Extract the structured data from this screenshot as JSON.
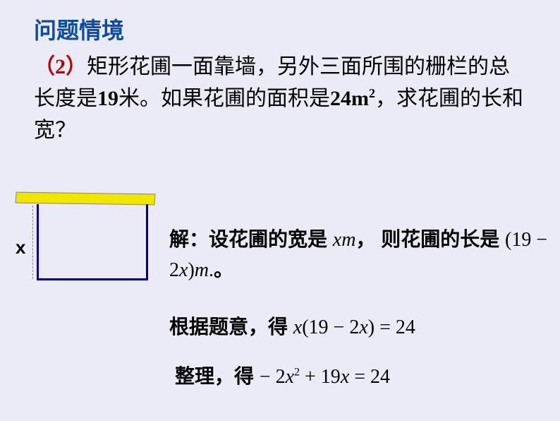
{
  "title": "问题情境",
  "problem": {
    "num": "（2）",
    "t1": "矩形花圃一面靠墙，另外三面所围的栅栏的总长度是",
    "len": "19",
    "t2": "米。如果花圃的面积是",
    "area": "24m",
    "areaExp": "2",
    "t3": "，求花圃的长和宽？"
  },
  "diagram": {
    "xLabel": "x",
    "wallColor": "#f0e600",
    "rectBorderColor": "#000080"
  },
  "solution": {
    "line1a": "解：设花圃的宽是 ",
    "line1math": "xm",
    "line1b": "，   则花圃的长是 ",
    "line1expr": "(19 − 2x)m.",
    "line1c": "。",
    "line2a": "根据题意，得 ",
    "line2expr": "x(19 − 2x) = 24",
    "line3a": "整理，得 ",
    "line3expr_a": "− 2x",
    "line3expr_exp": "2",
    "line3expr_b": " + 19x = 24"
  },
  "style": {
    "background": "#ebebf7",
    "titleColor": "#0a4aa8",
    "accentRed": "#c00000",
    "textColor": "#000000",
    "titleFontSize": 32,
    "bodyFontSize": 30,
    "mathFontSize": 28
  }
}
